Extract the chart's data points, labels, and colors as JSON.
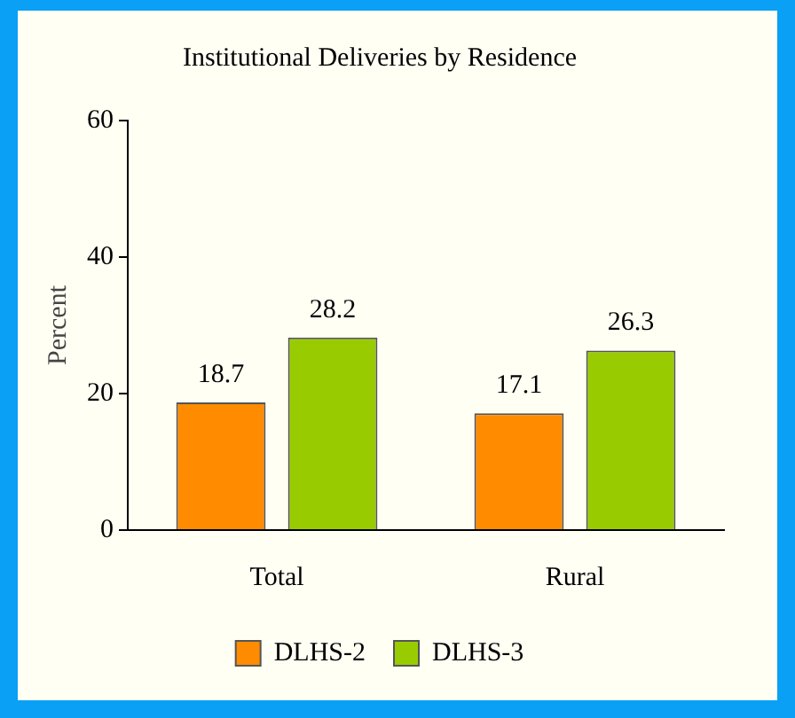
{
  "chart_data": {
    "type": "bar",
    "title": "Institutional Deliveries by Residence",
    "ylabel": "Percent",
    "categories": [
      "Total",
      "Rural"
    ],
    "series": [
      {
        "name": "DLHS-2",
        "color": "#ff8c00",
        "values": [
          18.7,
          17.1
        ]
      },
      {
        "name": "DLHS-3",
        "color": "#99cc00",
        "values": [
          28.2,
          26.3
        ]
      }
    ],
    "ylim": [
      0,
      60
    ],
    "yticks": [
      0,
      20,
      40,
      60
    ],
    "grid": false,
    "legend": "bottom",
    "data_labels": true
  }
}
